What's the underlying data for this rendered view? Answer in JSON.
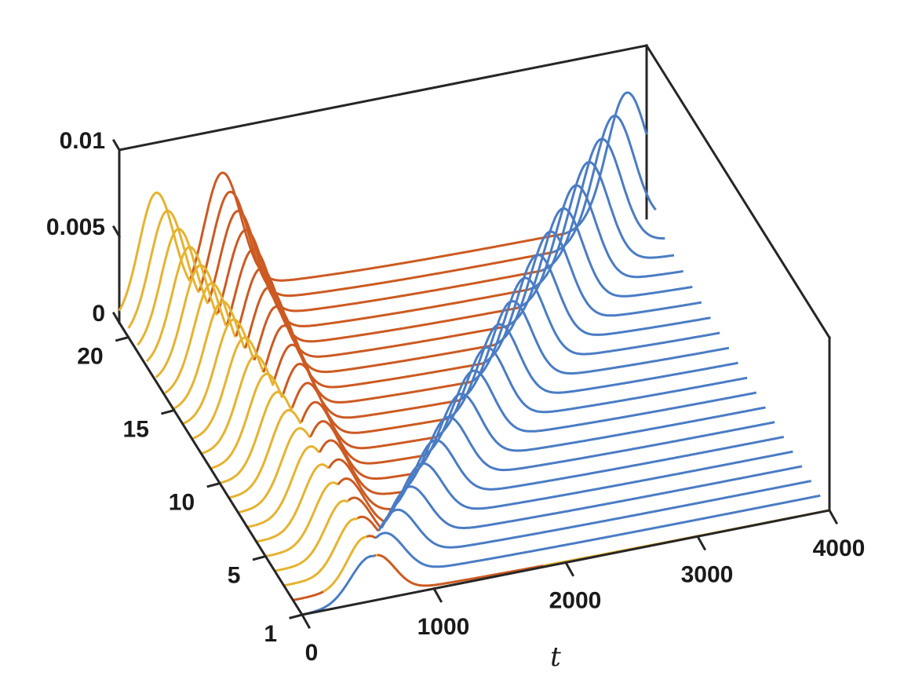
{
  "chart_data": {
    "type": "line",
    "view": "3d-waterfall",
    "x_label": "t",
    "x_ticks": [
      0,
      1000,
      2000,
      3000,
      4000
    ],
    "x_tick_labels": [
      "0",
      "1000",
      "2000",
      "3000",
      "4000"
    ],
    "xlim": [
      0,
      4000
    ],
    "y_ticks": [
      1,
      5,
      10,
      15,
      20
    ],
    "y_tick_labels": [
      "1",
      "5",
      "10",
      "15",
      "20"
    ],
    "ylim": [
      1,
      21
    ],
    "z_ticks": [
      0,
      0.005,
      0.01
    ],
    "z_tick_labels": [
      "0",
      "0.005",
      "0.01"
    ],
    "zlim": [
      0,
      0.01
    ],
    "grid": false,
    "colors": {
      "blue": "#4a7cc4",
      "orange": "#cc5a22",
      "yellow": "#e6b330",
      "axis": "#262626"
    },
    "series_components": [
      {
        "color": "yellow",
        "peak_t_first": 560,
        "peak_t_last": 280,
        "peak_z_first": 0.0026,
        "peak_z_last": 0.0071,
        "width": 130
      },
      {
        "color": "orange",
        "peak_t_first": 560,
        "peak_t_last": 780,
        "peak_z_first": 0.0026,
        "peak_z_last": 0.0075,
        "width": 140
      },
      {
        "color": "blue",
        "peak_t_first": 520,
        "peak_t_last": 3850,
        "peak_z_first": 0.0026,
        "peak_z_last": 0.0075,
        "width": 150
      }
    ],
    "series_count": 21
  }
}
